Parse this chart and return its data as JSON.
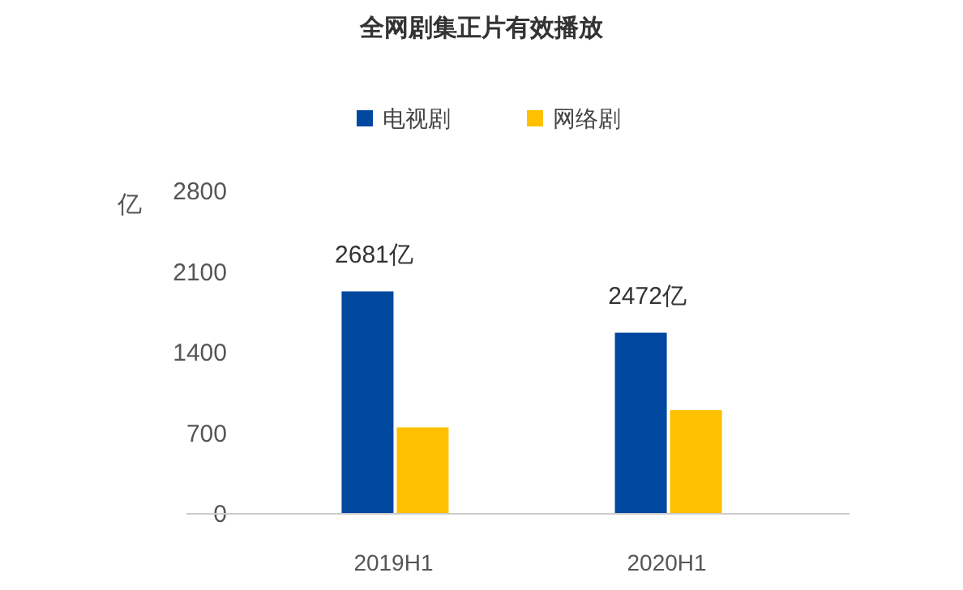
{
  "chart_data": {
    "type": "bar",
    "title": "全网剧集正片有效播放",
    "ylabel": "亿",
    "categories": [
      "2019H1",
      "2020H1"
    ],
    "series": [
      {
        "name": "电视剧",
        "color": "#0047a0",
        "values": [
          1931,
          1572
        ]
      },
      {
        "name": "网络剧",
        "color": "#ffc000",
        "values": [
          750,
          900
        ]
      }
    ],
    "totals": [
      "2681亿",
      "2472亿"
    ],
    "ylim": [
      0,
      2800
    ],
    "yticks": [
      0,
      700,
      1400,
      2100,
      2800
    ],
    "legend": "top"
  }
}
